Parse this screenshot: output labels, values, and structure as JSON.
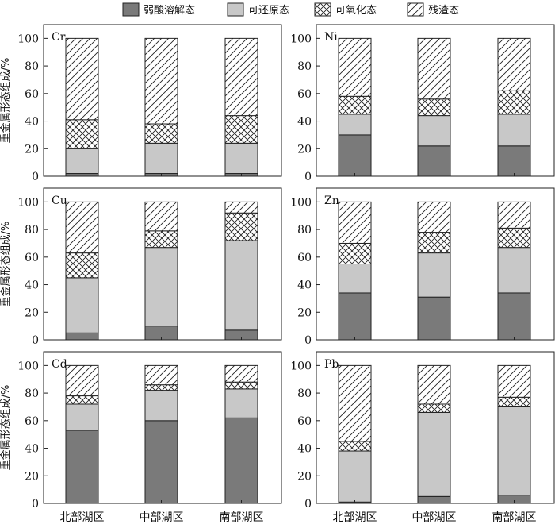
{
  "legend": [
    {
      "key": "weak_acid",
      "label": "弱酸溶解态"
    },
    {
      "key": "reducible",
      "label": "可还原态"
    },
    {
      "key": "oxidizable",
      "label": "可氧化态"
    },
    {
      "key": "residual",
      "label": "残渣态"
    }
  ],
  "colors": {
    "weak_acid": "#7a7a7a",
    "reducible": "#c8c8c8",
    "oxidizable": "#ffffff",
    "residual": "#ffffff",
    "stroke": "#222222"
  },
  "ylabel": "重金属形态组成/%",
  "yticks": [
    0,
    20,
    40,
    60,
    80,
    100
  ],
  "categories": [
    "北部湖区",
    "中部湖区",
    "南部湖区"
  ],
  "chart_data": [
    {
      "type": "bar",
      "stacked": true,
      "metal": "Cr",
      "categories": [
        "北部湖区",
        "中部湖区",
        "南部湖区"
      ],
      "ylim": [
        0,
        110
      ],
      "series": [
        {
          "name": "弱酸溶解态",
          "values": [
            2,
            2,
            2
          ]
        },
        {
          "name": "可还原态",
          "values": [
            18,
            22,
            22
          ]
        },
        {
          "name": "可氧化态",
          "values": [
            21,
            14,
            20
          ]
        },
        {
          "name": "残渣态",
          "values": [
            59,
            62,
            56
          ]
        }
      ]
    },
    {
      "type": "bar",
      "stacked": true,
      "metal": "Ni",
      "categories": [
        "北部湖区",
        "中部湖区",
        "南部湖区"
      ],
      "ylim": [
        0,
        110
      ],
      "series": [
        {
          "name": "弱酸溶解态",
          "values": [
            30,
            22,
            22
          ]
        },
        {
          "name": "可还原态",
          "values": [
            15,
            22,
            23
          ]
        },
        {
          "name": "可氧化态",
          "values": [
            13,
            12,
            17
          ]
        },
        {
          "name": "残渣态",
          "values": [
            42,
            44,
            38
          ]
        }
      ]
    },
    {
      "type": "bar",
      "stacked": true,
      "metal": "Cu",
      "categories": [
        "北部湖区",
        "中部湖区",
        "南部湖区"
      ],
      "ylim": [
        0,
        110
      ],
      "series": [
        {
          "name": "弱酸溶解态",
          "values": [
            5,
            10,
            7
          ]
        },
        {
          "name": "可还原态",
          "values": [
            40,
            57,
            65
          ]
        },
        {
          "name": "可氧化态",
          "values": [
            18,
            12,
            20
          ]
        },
        {
          "name": "残渣态",
          "values": [
            37,
            21,
            8
          ]
        }
      ]
    },
    {
      "type": "bar",
      "stacked": true,
      "metal": "Zn",
      "categories": [
        "北部湖区",
        "中部湖区",
        "南部湖区"
      ],
      "ylim": [
        0,
        110
      ],
      "series": [
        {
          "name": "弱酸溶解态",
          "values": [
            34,
            31,
            34
          ]
        },
        {
          "name": "可还原态",
          "values": [
            21,
            32,
            33
          ]
        },
        {
          "name": "可氧化态",
          "values": [
            15,
            15,
            14
          ]
        },
        {
          "name": "残渣态",
          "values": [
            30,
            22,
            19
          ]
        }
      ]
    },
    {
      "type": "bar",
      "stacked": true,
      "metal": "Cd",
      "categories": [
        "北部湖区",
        "中部湖区",
        "南部湖区"
      ],
      "ylim": [
        0,
        110
      ],
      "series": [
        {
          "name": "弱酸溶解态",
          "values": [
            53,
            60,
            62
          ]
        },
        {
          "name": "可还原态",
          "values": [
            19,
            22,
            21
          ]
        },
        {
          "name": "可氧化态",
          "values": [
            6,
            4,
            5
          ]
        },
        {
          "name": "残渣态",
          "values": [
            22,
            14,
            12
          ]
        }
      ]
    },
    {
      "type": "bar",
      "stacked": true,
      "metal": "Pb",
      "categories": [
        "北部湖区",
        "中部湖区",
        "南部湖区"
      ],
      "ylim": [
        0,
        110
      ],
      "series": [
        {
          "name": "弱酸溶解态",
          "values": [
            1,
            5,
            6
          ]
        },
        {
          "name": "可还原态",
          "values": [
            37,
            61,
            64
          ]
        },
        {
          "name": "可氧化态",
          "values": [
            7,
            6,
            7
          ]
        },
        {
          "name": "残渣态",
          "values": [
            55,
            28,
            23
          ]
        }
      ]
    }
  ]
}
